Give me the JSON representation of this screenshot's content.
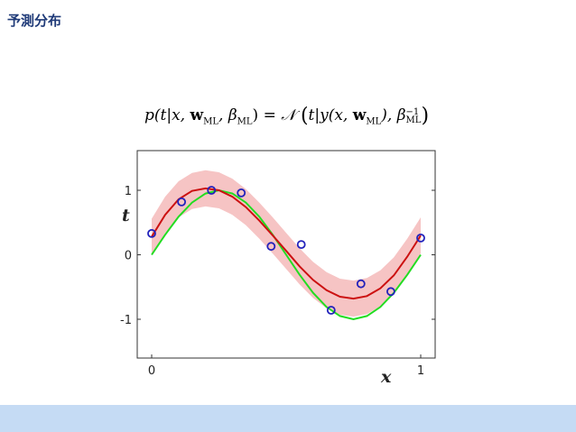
{
  "slide": {
    "title": "予測分布"
  },
  "formula": {
    "lhs_p": "p",
    "lhs_open": "(t|x, ",
    "w": "w",
    "ml": "ML",
    "comma_beta": ", β",
    "lhs_close": ") = ",
    "normal": "𝒩",
    "rhs_t": "t|y(x, ",
    "rhs_mid": "), β",
    "inv": "−1"
  },
  "colors": {
    "title": "#1f3a78",
    "footer": "#c5dbf4",
    "true_curve": "#22dd22",
    "fit_curve": "#cc1111",
    "band": "#f6c4c4",
    "points": "#2222bb"
  },
  "chart_data": {
    "type": "scatter",
    "xlabel": "x",
    "ylabel": "t",
    "xlim": [
      -0.05,
      1.05
    ],
    "ylim": [
      -1.6,
      1.6
    ],
    "xticks": [
      "0",
      "1"
    ],
    "yticks": [
      "-1",
      "0",
      "1"
    ],
    "grid": false,
    "series": [
      {
        "kind": "points",
        "x": [
          0.0,
          0.111,
          0.222,
          0.333,
          0.444,
          0.556,
          0.667,
          0.778,
          0.889,
          1.0
        ],
        "y": [
          0.33,
          0.82,
          1.0,
          0.96,
          0.13,
          0.16,
          -0.86,
          -0.45,
          -0.57,
          0.26
        ]
      },
      {
        "kind": "true-curve",
        "x": [
          0.0,
          0.05,
          0.1,
          0.15,
          0.2,
          0.25,
          0.3,
          0.35,
          0.4,
          0.45,
          0.5,
          0.55,
          0.6,
          0.65,
          0.7,
          0.75,
          0.8,
          0.85,
          0.9,
          0.95,
          1.0
        ],
        "y": [
          0.0,
          0.31,
          0.59,
          0.81,
          0.95,
          1.0,
          0.95,
          0.81,
          0.59,
          0.31,
          0.0,
          -0.31,
          -0.59,
          -0.81,
          -0.95,
          -1.0,
          -0.95,
          -0.81,
          -0.59,
          -0.31,
          0.0
        ]
      },
      {
        "kind": "fit-mean",
        "x": [
          0.0,
          0.05,
          0.1,
          0.15,
          0.2,
          0.25,
          0.3,
          0.35,
          0.4,
          0.45,
          0.5,
          0.55,
          0.6,
          0.65,
          0.7,
          0.75,
          0.8,
          0.85,
          0.9,
          0.95,
          1.0
        ],
        "y": [
          0.28,
          0.62,
          0.86,
          0.99,
          1.03,
          1.0,
          0.9,
          0.74,
          0.53,
          0.3,
          0.06,
          -0.18,
          -0.39,
          -0.55,
          -0.65,
          -0.68,
          -0.64,
          -0.52,
          -0.32,
          -0.03,
          0.3
        ]
      }
    ],
    "band_halfwidth": 0.28
  }
}
